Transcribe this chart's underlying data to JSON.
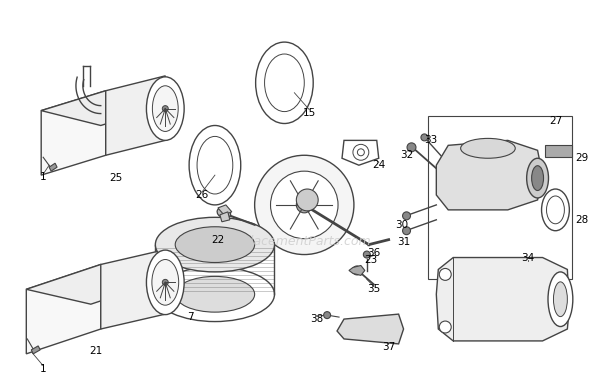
{
  "bg_color": "#ffffff",
  "line_color": "#444444",
  "watermark": "eReplacementParts.com",
  "figsize": [
    5.9,
    3.85
  ],
  "dpi": 100,
  "lw": 1.0
}
